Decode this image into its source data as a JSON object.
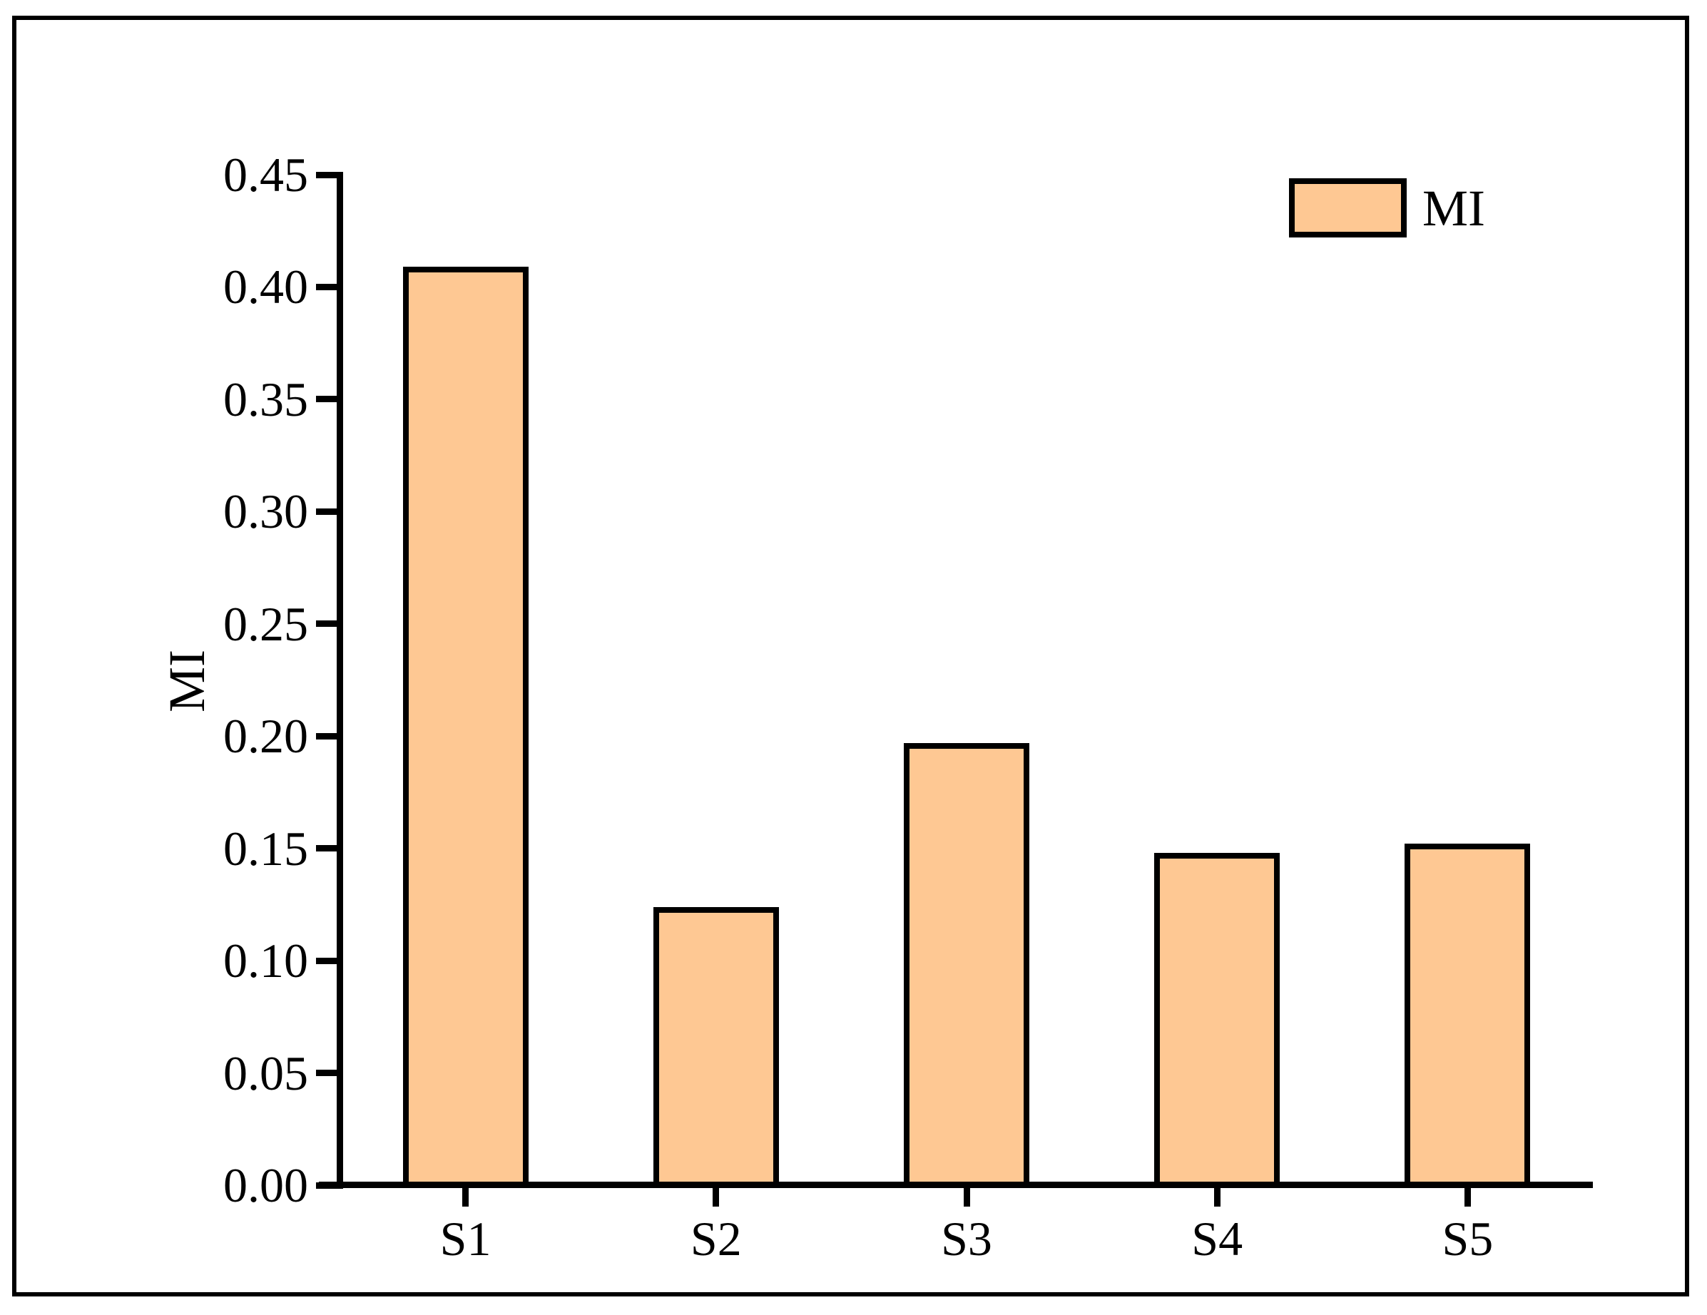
{
  "figure": {
    "y_axis_title": "MI",
    "legend": {
      "items": [
        {
          "label": "MI",
          "swatch_color": "#FEC893"
        }
      ]
    }
  },
  "chart_data": {
    "type": "bar",
    "categories": [
      "S1",
      "S2",
      "S3",
      "S4",
      "S5"
    ],
    "values": [
      0.409,
      0.124,
      0.197,
      0.148,
      0.152
    ],
    "series_name": "MI",
    "title": "",
    "xlabel": "",
    "ylabel": "MI",
    "ylim": [
      0,
      0.45
    ],
    "ytick_step": 0.05,
    "yticks": [
      "0.00",
      "0.05",
      "0.10",
      "0.15",
      "0.20",
      "0.25",
      "0.30",
      "0.35",
      "0.40",
      "0.45"
    ],
    "grid": false,
    "legend_position": "top-right",
    "bar_fill_color": "#FEC893",
    "bar_border_color": "#000000",
    "axis_color": "#000000"
  }
}
